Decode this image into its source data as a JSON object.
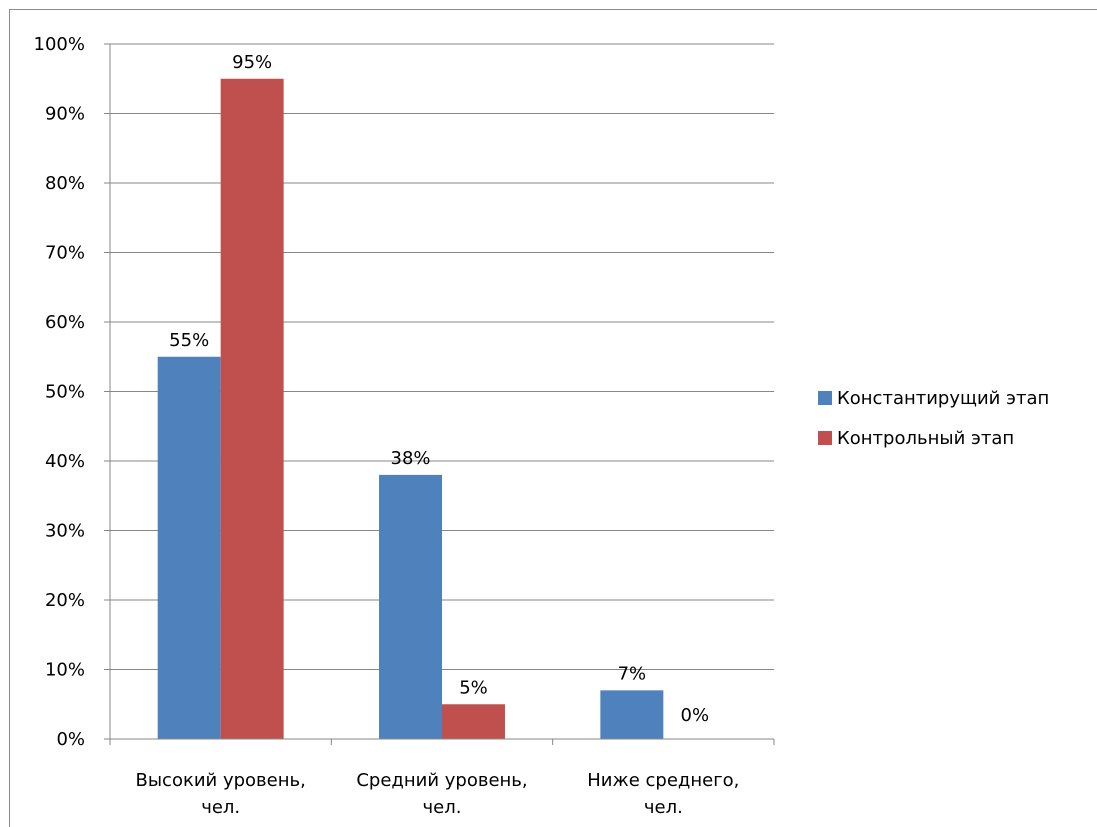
{
  "chart_data": {
    "type": "bar",
    "categories": [
      "Высокий уровень, чел.",
      "Средний уровень, чел.",
      "Ниже среднего, чел."
    ],
    "category_lines": [
      [
        "Высокий уровень,",
        "чел."
      ],
      [
        "Средний уровень,",
        "чел."
      ],
      [
        "Ниже среднего,",
        "чел."
      ]
    ],
    "series": [
      {
        "name": "Константирущий этап",
        "values": [
          55,
          38,
          7
        ],
        "labels": [
          "55%",
          "38%",
          "7%"
        ],
        "color": "#4f81bd"
      },
      {
        "name": "Контрольный этап",
        "values": [
          95,
          5,
          0
        ],
        "labels": [
          "95%",
          "5%",
          "0%"
        ],
        "color": "#c0504d"
      }
    ],
    "ylim": [
      0,
      100
    ],
    "yticks": [
      0,
      10,
      20,
      30,
      40,
      50,
      60,
      70,
      80,
      90,
      100
    ],
    "ytick_labels": [
      "0%",
      "10%",
      "20%",
      "30%",
      "40%",
      "50%",
      "60%",
      "70%",
      "80%",
      "90%",
      "100%"
    ],
    "title": "",
    "xlabel": "",
    "ylabel": "",
    "grid": true,
    "legend_position": "right",
    "colors": {
      "gridline": "#878787",
      "axis": "#878787"
    }
  }
}
